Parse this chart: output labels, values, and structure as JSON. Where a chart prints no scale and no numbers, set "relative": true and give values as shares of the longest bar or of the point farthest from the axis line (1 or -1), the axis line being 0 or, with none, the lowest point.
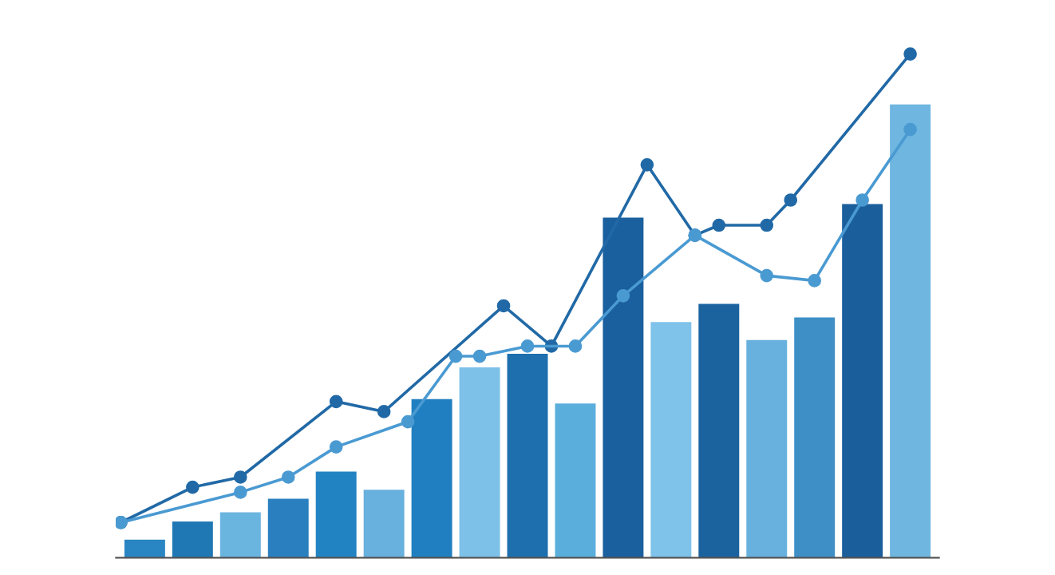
{
  "chart_data": [
    {
      "type": "bar",
      "relative": true,
      "categories": [
        null,
        null,
        null,
        null,
        null,
        null,
        null,
        null,
        null,
        null,
        null,
        null,
        null,
        null,
        null,
        null,
        null
      ],
      "values": [
        0.04,
        0.08,
        0.1,
        0.13,
        0.19,
        0.15,
        0.35,
        0.42,
        0.45,
        0.34,
        0.75,
        0.52,
        0.56,
        0.48,
        0.53,
        0.78,
        1.0
      ],
      "colors": [
        "#2a86c3",
        "#1f78b4",
        "#6ab4e0",
        "#2a80bf",
        "#2283c2",
        "#68b0dd",
        "#1f7fc0",
        "#7ec1e8",
        "#1d6fae",
        "#5aaedc",
        "#1a5f9e",
        "#80c3ea",
        "#1b639f",
        "#68b1de",
        "#3e8fc6",
        "#1a5e9c",
        "#6fb6e0"
      ]
    },
    {
      "type": "line",
      "relative": true,
      "marker": "circle",
      "categories": [
        null,
        null,
        null,
        null,
        null,
        null,
        null,
        null,
        null,
        null,
        null,
        null,
        null,
        null,
        null,
        null,
        null,
        null,
        null,
        null,
        null,
        null,
        null,
        null,
        null,
        null,
        null,
        null,
        null,
        null,
        null,
        null,
        null,
        null
      ],
      "series": [
        {
          "color": "#2169a6",
          "values": [
            0.07,
            null,
            null,
            0.14,
            null,
            0.16,
            null,
            null,
            null,
            0.31,
            null,
            0.29,
            null,
            null,
            null,
            null,
            0.5,
            null,
            0.42,
            null,
            null,
            null,
            0.78,
            null,
            0.64,
            0.66,
            null,
            0.66,
            0.71,
            null,
            null,
            null,
            null,
            1.0
          ]
        },
        {
          "color": "#4a9ad2",
          "values": [
            0.07,
            null,
            null,
            null,
            null,
            0.13,
            null,
            0.16,
            null,
            0.22,
            null,
            null,
            0.27,
            null,
            0.4,
            0.4,
            null,
            0.42,
            null,
            0.42,
            null,
            0.52,
            null,
            null,
            0.64,
            null,
            null,
            0.56,
            null,
            0.55,
            null,
            0.71,
            null,
            0.85
          ]
        }
      ]
    }
  ]
}
